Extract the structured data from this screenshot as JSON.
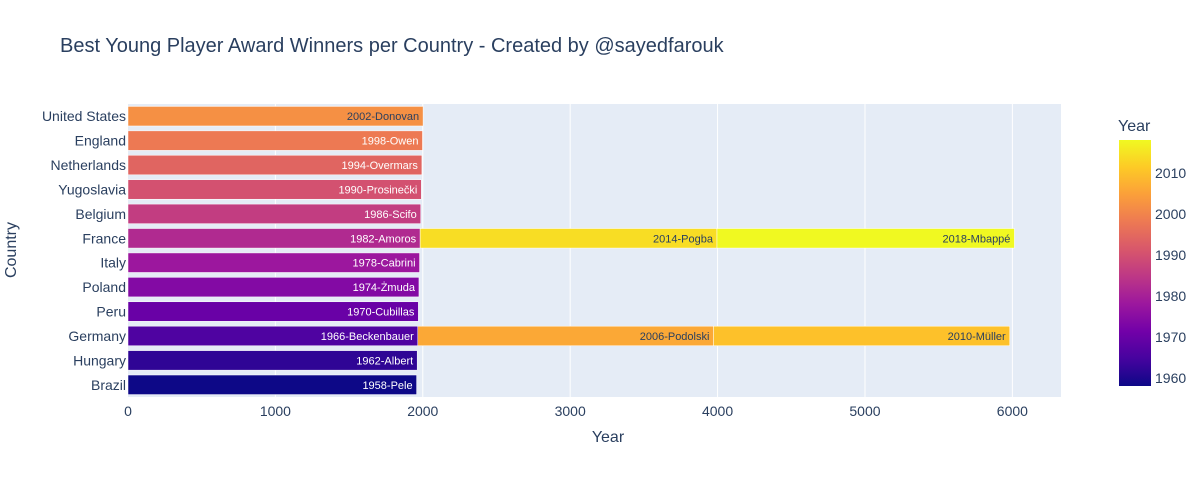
{
  "chart_data": {
    "type": "bar",
    "orientation": "horizontal",
    "barmode": "stack",
    "title": "Best Young Player Award Winners per Country - Created by @sayedfarouk",
    "xlabel": "Year",
    "ylabel": "Country",
    "xlim": [
      0,
      6330
    ],
    "x_ticks": [
      0,
      1000,
      2000,
      3000,
      4000,
      5000,
      6000
    ],
    "categories": [
      "Brazil",
      "Hungary",
      "Germany",
      "Peru",
      "Poland",
      "Italy",
      "France",
      "Belgium",
      "Yugoslavia",
      "Netherlands",
      "England",
      "United States"
    ],
    "bars": [
      {
        "country": "Brazil",
        "year": 1958,
        "label": "1958-Pele"
      },
      {
        "country": "Hungary",
        "year": 1962,
        "label": "1962-Albert"
      },
      {
        "country": "Germany",
        "year": 1966,
        "label": "1966-Beckenbauer"
      },
      {
        "country": "Peru",
        "year": 1970,
        "label": "1970-Cubillas"
      },
      {
        "country": "Poland",
        "year": 1974,
        "label": "1974-Żmuda"
      },
      {
        "country": "Italy",
        "year": 1978,
        "label": "1978-Cabrini"
      },
      {
        "country": "France",
        "year": 1982,
        "label": "1982-Amoros"
      },
      {
        "country": "Belgium",
        "year": 1986,
        "label": "1986-Scifo"
      },
      {
        "country": "Yugoslavia",
        "year": 1990,
        "label": "1990-Prosinečki"
      },
      {
        "country": "Netherlands",
        "year": 1994,
        "label": "1994-Overmars"
      },
      {
        "country": "England",
        "year": 1998,
        "label": "1998-Owen"
      },
      {
        "country": "United States",
        "year": 2002,
        "label": "2002-Donovan"
      },
      {
        "country": "Germany",
        "year": 2006,
        "label": "2006-Podolski"
      },
      {
        "country": "Germany",
        "year": 2010,
        "label": "2010-Müller"
      },
      {
        "country": "France",
        "year": 2014,
        "label": "2014-Pogba"
      },
      {
        "country": "France",
        "year": 2018,
        "label": "2018-Mbappé"
      }
    ],
    "colorbar": {
      "title": "Year",
      "range": [
        1958,
        2018
      ],
      "ticks": [
        1960,
        1970,
        1980,
        1990,
        2000,
        2010
      ],
      "colorscale": [
        "#0d0887",
        "#46039f",
        "#7201a8",
        "#9c179e",
        "#bd3786",
        "#d8576b",
        "#ed7953",
        "#fb9f3a",
        "#fdca26",
        "#f0f921"
      ]
    },
    "colors": {
      "plot_bg": "#e5ecf6",
      "grid": "#ffffff",
      "text": "#2a3f5f"
    },
    "grid": true,
    "legend": "colorbar-right"
  }
}
